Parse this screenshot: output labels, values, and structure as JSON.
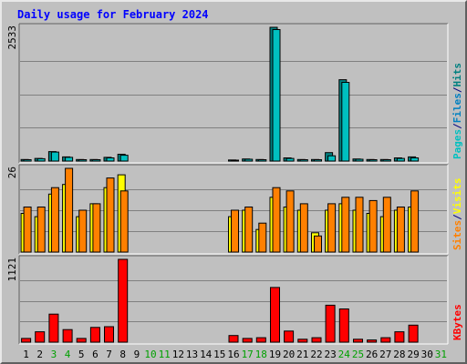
{
  "chart_data": {
    "type": "bar",
    "title": "Daily usage for February 2024",
    "categories": [
      "1",
      "2",
      "3",
      "4",
      "5",
      "6",
      "7",
      "8",
      "9",
      "10",
      "11",
      "12",
      "13",
      "14",
      "15",
      "16",
      "17",
      "18",
      "19",
      "20",
      "21",
      "22",
      "23",
      "24",
      "25",
      "26",
      "27",
      "28",
      "29",
      "30",
      "31"
    ],
    "weekend_days": [
      "3",
      "4",
      "10",
      "11",
      "17",
      "18",
      "24",
      "25",
      "31"
    ],
    "panels": [
      {
        "id": "hits",
        "max_label": "2533",
        "ymax": 2533,
        "right_label": [
          {
            "text": "Pages",
            "color": "#00c0c0"
          },
          {
            "text": "/",
            "color": "#000080"
          },
          {
            "text": "Files",
            "color": "#0080c0"
          },
          {
            "text": "/",
            "color": "#000080"
          },
          {
            "text": "Hits",
            "color": "#008080"
          }
        ],
        "series": [
          {
            "name": "Hits",
            "color": "#008080",
            "values": [
              30,
              50,
              180,
              80,
              30,
              30,
              70,
              130,
              null,
              null,
              null,
              null,
              null,
              null,
              null,
              20,
              40,
              30,
              2533,
              60,
              30,
              30,
              160,
              1540,
              40,
              30,
              30,
              60,
              80,
              null,
              null
            ]
          },
          {
            "name": "Files",
            "color": "#00c0c0",
            "values": [
              25,
              45,
              170,
              70,
              25,
              25,
              60,
              110,
              null,
              null,
              null,
              null,
              null,
              null,
              null,
              18,
              35,
              25,
              2490,
              50,
              25,
              25,
              100,
              1490,
              35,
              25,
              25,
              50,
              60,
              null,
              null
            ]
          }
        ]
      },
      {
        "id": "visits",
        "max_label": "26",
        "ymax": 26,
        "right_label": [
          {
            "text": "Sites",
            "color": "#ff8000"
          },
          {
            "text": "/",
            "color": "#000080"
          },
          {
            "text": "Visits",
            "color": "#ffff00"
          }
        ],
        "series": [
          {
            "name": "Visits",
            "color": "#ffff00",
            "values": [
              12,
              11,
              18,
              21,
              11,
              15,
              20,
              24,
              null,
              null,
              null,
              null,
              null,
              null,
              null,
              11,
              13,
              7,
              17,
              14,
              13,
              6,
              13,
              15,
              13,
              12,
              11,
              13,
              14,
              null,
              null
            ]
          },
          {
            "name": "Sites",
            "color": "#ff8000",
            "values": [
              14,
              14,
              20,
              26,
              13,
              15,
              23,
              19,
              null,
              null,
              null,
              null,
              null,
              null,
              null,
              13,
              14,
              9,
              20,
              19,
              15,
              5,
              15,
              17,
              17,
              16,
              17,
              14,
              19,
              null,
              null
            ]
          }
        ]
      },
      {
        "id": "kbytes",
        "max_label": "1121",
        "ymax": 1121,
        "right_label": [
          {
            "text": "KBytes",
            "color": "#ff0000"
          }
        ],
        "series": [
          {
            "name": "KBytes",
            "color": "#ff0000",
            "values": [
              50,
              140,
              380,
              170,
              50,
              200,
              210,
              1121,
              null,
              null,
              null,
              null,
              null,
              null,
              null,
              90,
              50,
              60,
              740,
              150,
              40,
              60,
              500,
              450,
              40,
              30,
              60,
              140,
              230,
              null,
              null
            ]
          }
        ]
      }
    ]
  }
}
